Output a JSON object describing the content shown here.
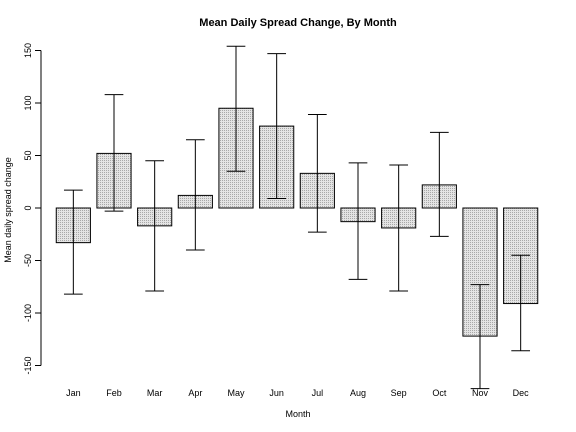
{
  "chart_data": {
    "type": "bar",
    "title": "Mean Daily Spread Change, By Month",
    "xlabel": "Month",
    "ylabel": "Mean daily spread change",
    "categories": [
      "Jan",
      "Feb",
      "Mar",
      "Apr",
      "May",
      "Jun",
      "Jul",
      "Aug",
      "Sep",
      "Oct",
      "Nov",
      "Dec"
    ],
    "values": [
      -33,
      52,
      -17,
      12,
      95,
      78,
      33,
      -13,
      -19,
      22,
      -122,
      -91
    ],
    "error_low": [
      -82,
      -3,
      -79,
      -40,
      35,
      9,
      -23,
      -68,
      -79,
      -27,
      -172,
      -136
    ],
    "error_high": [
      17,
      108,
      45,
      65,
      154,
      147,
      89,
      43,
      41,
      72,
      -73,
      -45
    ],
    "ylim": [
      -160,
      160
    ],
    "yticks": [
      -150,
      -100,
      -50,
      0,
      50,
      100,
      150
    ],
    "grid": false,
    "bar_fill": "#d8d8d8",
    "bar_stroke": "#000000"
  }
}
